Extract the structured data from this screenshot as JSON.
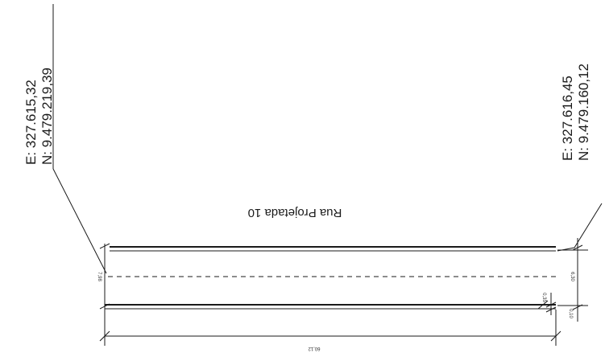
{
  "left_point": {
    "easting": "E: 327.615,32",
    "northing": "N: 9.479.219,39"
  },
  "right_point": {
    "easting": "E: 327.616,45",
    "northing": "N: 9.479.160,12"
  },
  "street_name": "Rua Projetada 10",
  "dimensions": {
    "left_width": "7,98",
    "right_width": "6,30",
    "sidewalk_small": "0,35",
    "sidewalk_right": "0,10",
    "length": "60,12"
  },
  "colors": {
    "ink": "#1a1a1a",
    "background": "#ffffff"
  }
}
